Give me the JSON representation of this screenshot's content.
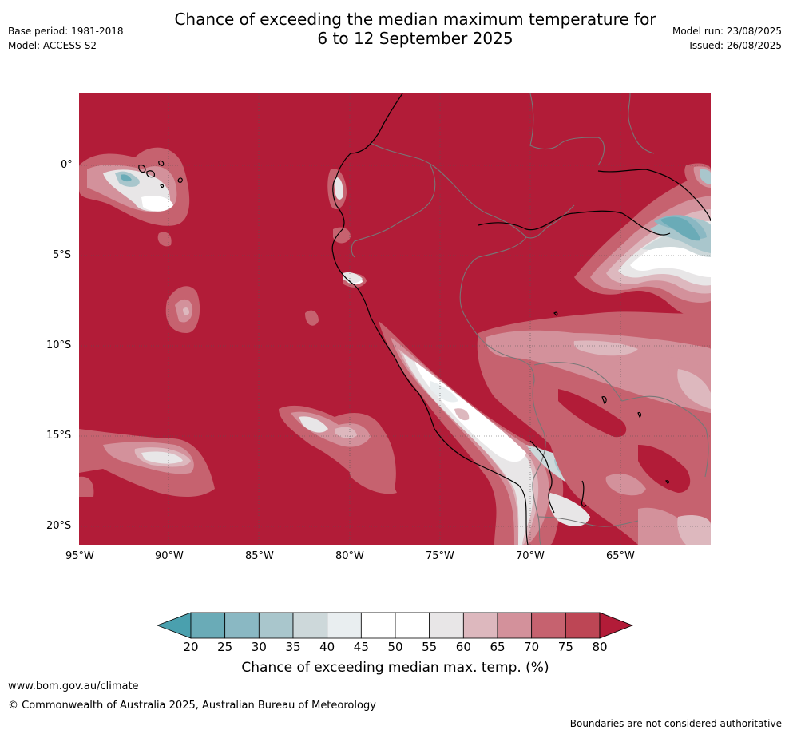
{
  "header": {
    "title_line1": "Chance of exceeding the median maximum temperature for",
    "title_line2": "6 to 12 September 2025",
    "base_period": "Base period: 1981-2018",
    "model": "Model: ACCESS-S2",
    "model_run": "Model run: 23/08/2025",
    "issued": "Issued: 26/08/2025"
  },
  "map": {
    "lat_labels": [
      "0°",
      "5°S",
      "10°S",
      "15°S",
      "20°S"
    ],
    "lon_labels": [
      "95°W",
      "90°W",
      "85°W",
      "80°W",
      "75°W",
      "70°W",
      "65°W"
    ],
    "dominant_category": "80",
    "colors": {
      "above_80": "#b21c38",
      "ocean_fill": "#b21c38",
      "coast": "#000000",
      "borders": "#777777",
      "grid": "#555555"
    }
  },
  "colorbar": {
    "ticks": [
      "20",
      "25",
      "30",
      "35",
      "40",
      "45",
      "50",
      "55",
      "60",
      "65",
      "70",
      "75",
      "80"
    ],
    "colors": [
      "#6aabb7",
      "#8ab8c3",
      "#a9c6cc",
      "#cdd8da",
      "#e9eef0",
      "#ffffff",
      "#ffffff",
      "#e8e6e7",
      "#ddb8be",
      "#d3919b",
      "#c6626f",
      "#bd4655"
    ],
    "low_arrow_color": "#4aa0ae",
    "high_arrow_color": "#b21c38",
    "label": "Chance of exceeding median max. temp. (%)"
  },
  "footer": {
    "website": "www.bom.gov.au/climate",
    "copyright": "© Commonwealth of Australia 2025, Australian Bureau of Meteorology",
    "disclaimer": "Boundaries are not considered authoritative"
  }
}
